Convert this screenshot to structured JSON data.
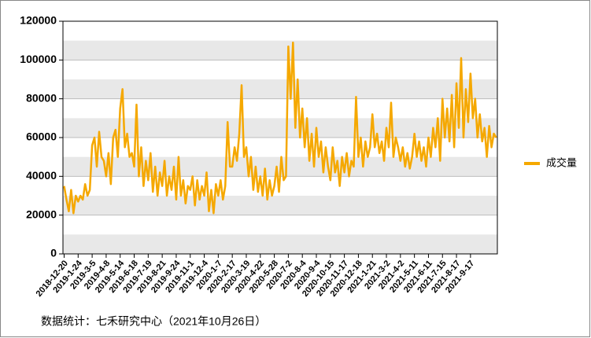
{
  "chart_data": {
    "type": "line",
    "categories": [
      "2018-12-20",
      null,
      null,
      null,
      null,
      null,
      "2019-1-24",
      null,
      null,
      null,
      null,
      null,
      "2019-3-5",
      null,
      null,
      null,
      null,
      null,
      "2019-4-8",
      null,
      null,
      null,
      null,
      null,
      "2019-5-14",
      null,
      null,
      null,
      null,
      null,
      "2019-6-18",
      null,
      null,
      null,
      null,
      null,
      "2019-7-19",
      null,
      null,
      null,
      null,
      null,
      "2019-8-21",
      null,
      null,
      null,
      null,
      null,
      "2019-9-24",
      null,
      null,
      null,
      null,
      null,
      "2019-11-1",
      null,
      null,
      null,
      null,
      null,
      "2019-12-4",
      null,
      null,
      null,
      null,
      null,
      "2020-1-7",
      null,
      null,
      null,
      null,
      null,
      "2020-2-17",
      null,
      null,
      null,
      null,
      null,
      "2020-3-19",
      null,
      null,
      null,
      null,
      null,
      "2020-4-22",
      null,
      null,
      null,
      null,
      null,
      "2020-5-28",
      null,
      null,
      null,
      null,
      null,
      "2020-7-2",
      null,
      null,
      null,
      null,
      null,
      "2020-8-4",
      null,
      null,
      null,
      null,
      null,
      "2020-9-4",
      null,
      null,
      null,
      null,
      null,
      "2020-10-15",
      null,
      null,
      null,
      null,
      null,
      "2020-11-17",
      null,
      null,
      null,
      null,
      null,
      "2020-12-18",
      null,
      null,
      null,
      null,
      null,
      "2021-1-21",
      null,
      null,
      null,
      null,
      null,
      "2021-3-2",
      null,
      null,
      null,
      null,
      null,
      "2021-4-2",
      null,
      null,
      null,
      null,
      null,
      "2021-5-11",
      null,
      null,
      null,
      null,
      null,
      "2021-6-11",
      null,
      null,
      null,
      null,
      null,
      "2021-7-15",
      null,
      null,
      null,
      null,
      null,
      "2021-8-17",
      null,
      null,
      null,
      null,
      null,
      "2021-9-17",
      null,
      null,
      null,
      null,
      null,
      null,
      null,
      null,
      null,
      null,
      null
    ],
    "series": [
      {
        "name": "成交量",
        "color": "#f5a800",
        "values": [
          35000,
          28000,
          22000,
          33000,
          21000,
          30000,
          27000,
          30000,
          28000,
          36000,
          30000,
          33000,
          56000,
          60000,
          45000,
          63000,
          50000,
          48000,
          40000,
          52000,
          36000,
          60000,
          64000,
          50000,
          75000,
          85000,
          55000,
          62000,
          50000,
          52000,
          45000,
          77000,
          40000,
          55000,
          35000,
          48000,
          38000,
          52000,
          32000,
          45000,
          30000,
          42000,
          35000,
          48000,
          30000,
          40000,
          33000,
          45000,
          28000,
          50000,
          30000,
          38000,
          26000,
          35000,
          33000,
          40000,
          25000,
          38000,
          28000,
          35000,
          30000,
          42000,
          22000,
          33000,
          21000,
          36000,
          30000,
          38000,
          28000,
          35000,
          68000,
          45000,
          45000,
          55000,
          48000,
          62000,
          87000,
          50000,
          55000,
          40000,
          50000,
          33000,
          45000,
          32000,
          40000,
          30000,
          44000,
          28000,
          38000,
          30000,
          35000,
          45000,
          32000,
          50000,
          38000,
          40000,
          107000,
          80000,
          109000,
          65000,
          90000,
          60000,
          75000,
          55000,
          70000,
          48000,
          62000,
          45000,
          65000,
          50000,
          58000,
          42000,
          55000,
          45000,
          38000,
          55000,
          42000,
          48000,
          35000,
          50000,
          42000,
          52000,
          40000,
          48000,
          45000,
          81000,
          50000,
          60000,
          45000,
          58000,
          50000,
          55000,
          72000,
          55000,
          62000,
          52000,
          58000,
          48000,
          65000,
          55000,
          78000,
          50000,
          60000,
          55000,
          48000,
          55000,
          45000,
          52000,
          44000,
          50000,
          62000,
          50000,
          58000,
          48000,
          55000,
          45000,
          60000,
          50000,
          65000,
          55000,
          70000,
          48000,
          80000,
          60000,
          75000,
          58000,
          82000,
          55000,
          88000,
          65000,
          101000,
          60000,
          85000,
          68000,
          93000,
          70000,
          80000,
          60000,
          72000,
          58000,
          65000,
          50000,
          66000,
          55000,
          62000,
          60000
        ]
      }
    ],
    "ylim": [
      0,
      120000
    ],
    "yticks": [
      0,
      20000,
      40000,
      60000,
      80000,
      100000,
      120000
    ],
    "note": "数据统计：七禾研究中心（2021年10月26日）"
  }
}
